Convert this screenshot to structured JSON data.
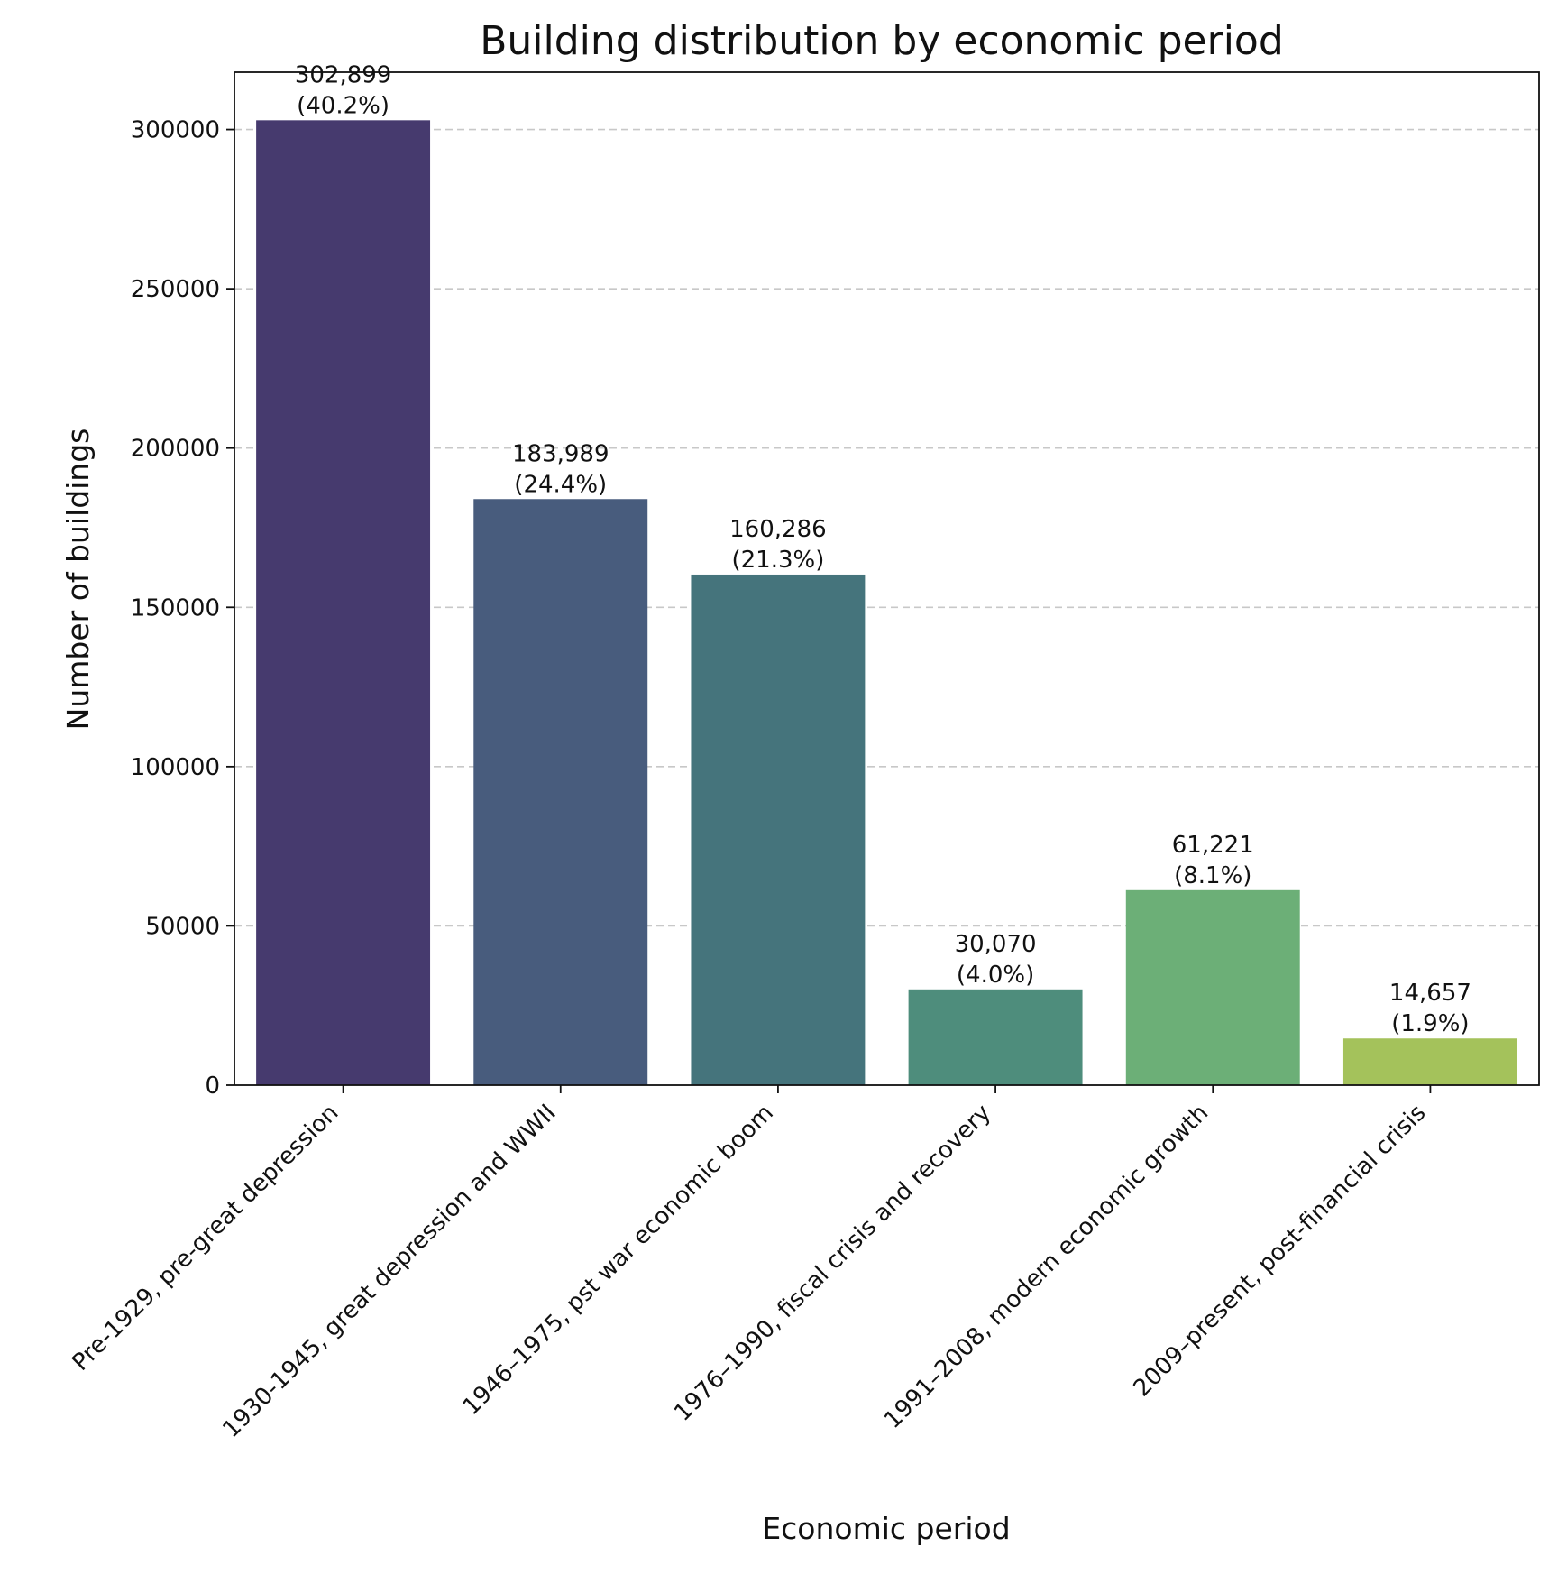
{
  "chart_data": {
    "type": "bar",
    "title": "Building distribution by economic period",
    "xlabel": "Economic period",
    "ylabel": "Number of buildings",
    "ylim": [
      0,
      318000
    ],
    "yticks": [
      0,
      50000,
      100000,
      150000,
      200000,
      250000,
      300000
    ],
    "grid": "y-dashed",
    "categories": [
      "Pre-1929, pre-great depression",
      "1930-1945, great depression and WWII",
      "1946–1975, pst war economic boom",
      "1976–1990, fiscal crisis and recovery",
      "1991–2008, modern economic growth",
      "2009–present, post-financial crisis"
    ],
    "values": [
      302899,
      183989,
      160286,
      30070,
      61221,
      14657
    ],
    "value_labels": [
      "302,899",
      "183,989",
      "160,286",
      "30,070",
      "61,221",
      "14,657"
    ],
    "percent_labels": [
      "(40.2%)",
      "(24.4%)",
      "(21.3%)",
      "(4.0%)",
      "(8.1%)",
      "(1.9%)"
    ],
    "colors": [
      "#463a6e",
      "#485c7d",
      "#45747c",
      "#4e8d7c",
      "#6caf77",
      "#a4c25b"
    ]
  }
}
